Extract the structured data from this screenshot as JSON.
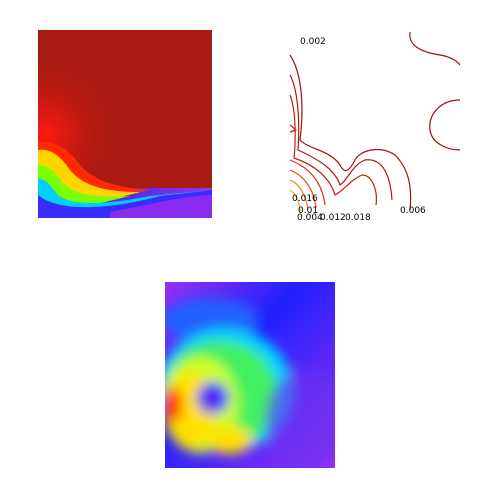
{
  "contour_labels": [
    "0.002",
    "0.016",
    "0.01",
    "0.004",
    "0.012",
    "0.018",
    "0.006"
  ]
}
